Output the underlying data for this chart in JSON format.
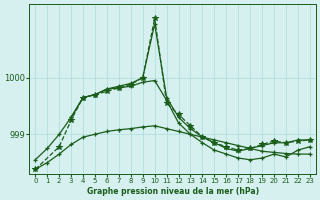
{
  "xlabel": "Graphe pression niveau de la mer (hPa)",
  "background_color": "#d6f0f0",
  "line_color": "#1a5c1a",
  "grid_color": "#aadddd",
  "x_ticks": [
    0,
    1,
    2,
    3,
    4,
    5,
    6,
    7,
    8,
    9,
    10,
    11,
    12,
    13,
    14,
    15,
    16,
    17,
    18,
    19,
    20,
    21,
    22,
    23
  ],
  "y_ticks": [
    999,
    1000
  ],
  "ylim": [
    998.3,
    1001.3
  ],
  "xlim": [
    -0.5,
    23.5
  ],
  "line1_x": [
    0,
    1,
    2,
    3,
    4,
    5,
    6,
    7,
    8,
    9,
    10,
    11,
    12,
    13,
    14,
    15,
    16,
    17,
    18,
    19,
    20,
    21,
    22,
    23
  ],
  "line1_y": [
    998.55,
    998.75,
    999.0,
    999.3,
    999.65,
    999.7,
    999.8,
    999.85,
    999.9,
    1000.0,
    1000.95,
    999.65,
    999.3,
    999.1,
    998.95,
    998.85,
    998.75,
    998.7,
    998.75,
    998.8,
    998.85,
    998.85,
    998.9,
    998.9
  ],
  "line2_x": [
    0,
    1,
    2,
    3,
    4,
    5,
    6,
    7,
    8,
    9,
    10,
    11,
    12,
    13,
    14,
    15,
    16,
    17,
    18,
    19,
    20,
    21,
    22,
    23
  ],
  "line2_y": [
    998.38,
    998.5,
    998.65,
    998.82,
    998.95,
    999.0,
    999.05,
    999.08,
    999.1,
    999.13,
    999.15,
    999.1,
    999.05,
    999.0,
    998.95,
    998.9,
    998.85,
    998.8,
    998.75,
    998.7,
    998.68,
    998.66,
    998.65,
    998.65
  ],
  "line3_x": [
    0,
    2,
    3,
    4,
    5,
    6,
    7,
    8,
    9,
    10,
    11,
    12,
    13,
    14,
    15,
    16,
    17,
    18,
    19,
    20,
    21,
    22,
    23
  ],
  "line3_y": [
    998.38,
    998.78,
    999.25,
    999.65,
    999.7,
    999.76,
    999.82,
    999.88,
    1000.0,
    1001.05,
    999.55,
    999.35,
    999.15,
    998.95,
    998.85,
    998.78,
    998.72,
    998.75,
    998.82,
    998.88,
    998.85,
    998.88,
    998.9
  ],
  "line4_x": [
    3,
    4,
    5,
    6,
    7,
    8,
    9,
    10,
    11,
    12,
    13,
    14,
    15,
    16,
    17,
    18,
    19,
    20,
    21,
    22,
    23
  ],
  "line4_y": [
    999.3,
    999.65,
    999.7,
    999.8,
    999.82,
    999.85,
    999.92,
    999.95,
    999.6,
    999.2,
    999.0,
    998.85,
    998.72,
    998.65,
    998.58,
    998.55,
    998.58,
    998.65,
    998.6,
    998.72,
    998.78
  ]
}
